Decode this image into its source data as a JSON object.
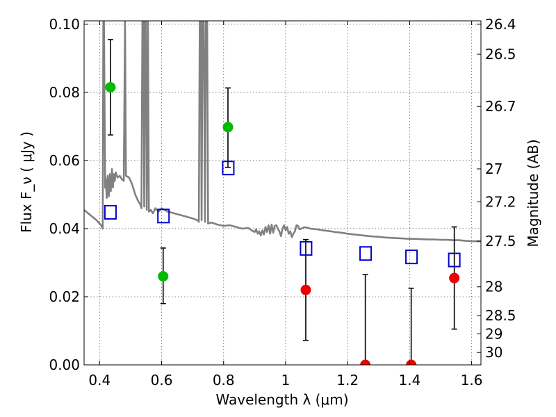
{
  "chart_data": {
    "type": "scatter",
    "xlabel": "Wavelength  λ (μm)",
    "ylabel": "Flux  F_ν  ( μJy )",
    "ylabel_right": "Magnitude (AB)",
    "xlim": [
      0.35,
      1.63
    ],
    "ylim": [
      0,
      0.101
    ],
    "grid": true,
    "x_ticks": [
      0.4,
      0.6,
      0.8,
      1.0,
      1.2,
      1.4,
      1.6
    ],
    "x_tick_labels": [
      "0.4",
      "0.6",
      "0.8",
      "1",
      "1.2",
      "1.4",
      "1.6"
    ],
    "y_ticks": [
      0.0,
      0.02,
      0.04,
      0.06,
      0.08,
      0.1
    ],
    "y_tick_labels": [
      "0.00",
      "0.02",
      "0.04",
      "0.06",
      "0.08",
      "0.10"
    ],
    "mag_ticks": [
      26.4,
      26.5,
      26.7,
      27,
      27.2,
      27.5,
      28,
      28.5,
      29,
      30
    ],
    "mag_tick_labels": [
      "26.4",
      "26.5",
      "26.7",
      "27",
      "27.2",
      "27.5",
      "28",
      "28.5",
      "29",
      "30"
    ],
    "series": [
      {
        "marker": "circle",
        "color": "#00bb00",
        "points": [
          {
            "x": 0.435,
            "y": 0.0815,
            "err_low": 0.0675,
            "err_high": 0.0955
          },
          {
            "x": 0.605,
            "y": 0.026,
            "err_low": 0.018,
            "err_high": 0.0343
          },
          {
            "x": 0.814,
            "y": 0.0698,
            "err_low": 0.058,
            "err_high": 0.0813
          }
        ]
      },
      {
        "marker": "circle",
        "color": "#ee0000",
        "points": [
          {
            "x": 1.065,
            "y": 0.022,
            "err_low": 0.0072,
            "err_high": 0.0368
          },
          {
            "x": 1.257,
            "y": 0.0,
            "err_low": 0.0,
            "err_high": 0.0265
          },
          {
            "x": 1.405,
            "y": 0.0,
            "err_low": 0.0,
            "err_high": 0.0225
          },
          {
            "x": 1.544,
            "y": 0.0255,
            "err_low": 0.0105,
            "err_high": 0.0405
          }
        ]
      },
      {
        "marker": "open-square",
        "color": "#0000cc",
        "points": [
          {
            "x": 0.435,
            "y": 0.0448
          },
          {
            "x": 0.606,
            "y": 0.0437
          },
          {
            "x": 0.815,
            "y": 0.0578
          },
          {
            "x": 1.066,
            "y": 0.0342
          },
          {
            "x": 1.258,
            "y": 0.0327
          },
          {
            "x": 1.406,
            "y": 0.0317
          },
          {
            "x": 1.544,
            "y": 0.0308
          }
        ]
      },
      {
        "type": "line",
        "color": "#808080",
        "points": [
          [
            0.35,
            0.0455
          ],
          [
            0.37,
            0.044
          ],
          [
            0.39,
            0.0425
          ],
          [
            0.405,
            0.041
          ],
          [
            0.41,
            0.04
          ],
          [
            0.412,
            0.101
          ],
          [
            0.414,
            0.101
          ],
          [
            0.418,
            0.052
          ],
          [
            0.42,
            0.0545
          ],
          [
            0.423,
            0.049
          ],
          [
            0.426,
            0.0555
          ],
          [
            0.43,
            0.0495
          ],
          [
            0.433,
            0.056
          ],
          [
            0.436,
            0.051
          ],
          [
            0.44,
            0.0575
          ],
          [
            0.443,
            0.052
          ],
          [
            0.446,
            0.056
          ],
          [
            0.449,
            0.054
          ],
          [
            0.452,
            0.0565
          ],
          [
            0.458,
            0.055
          ],
          [
            0.465,
            0.0555
          ],
          [
            0.472,
            0.0545
          ],
          [
            0.478,
            0.054
          ],
          [
            0.482,
            0.101
          ],
          [
            0.485,
            0.0555
          ],
          [
            0.495,
            0.055
          ],
          [
            0.505,
            0.053
          ],
          [
            0.515,
            0.05
          ],
          [
            0.525,
            0.048
          ],
          [
            0.532,
            0.047
          ],
          [
            0.535,
            0.046
          ],
          [
            0.538,
            0.101
          ],
          [
            0.541,
            0.101
          ],
          [
            0.544,
            0.0465
          ],
          [
            0.546,
            0.101
          ],
          [
            0.549,
            0.101
          ],
          [
            0.552,
            0.0455
          ],
          [
            0.556,
            0.101
          ],
          [
            0.559,
            0.045
          ],
          [
            0.565,
            0.0455
          ],
          [
            0.572,
            0.0445
          ],
          [
            0.58,
            0.046
          ],
          [
            0.59,
            0.045
          ],
          [
            0.6,
            0.046
          ],
          [
            0.62,
            0.045
          ],
          [
            0.64,
            0.0445
          ],
          [
            0.66,
            0.044
          ],
          [
            0.68,
            0.0435
          ],
          [
            0.7,
            0.043
          ],
          [
            0.715,
            0.0425
          ],
          [
            0.72,
            0.042
          ],
          [
            0.723,
            0.101
          ],
          [
            0.726,
            0.101
          ],
          [
            0.729,
            0.0425
          ],
          [
            0.732,
            0.101
          ],
          [
            0.736,
            0.101
          ],
          [
            0.74,
            0.042
          ],
          [
            0.743,
            0.101
          ],
          [
            0.747,
            0.101
          ],
          [
            0.75,
            0.0415
          ],
          [
            0.76,
            0.0418
          ],
          [
            0.78,
            0.0412
          ],
          [
            0.8,
            0.0408
          ],
          [
            0.82,
            0.041
          ],
          [
            0.84,
            0.0405
          ],
          [
            0.86,
            0.04
          ],
          [
            0.88,
            0.0402
          ],
          [
            0.89,
            0.0395
          ],
          [
            0.9,
            0.039
          ],
          [
            0.905,
            0.0398
          ],
          [
            0.91,
            0.0385
          ],
          [
            0.915,
            0.0392
          ],
          [
            0.92,
            0.038
          ],
          [
            0.925,
            0.0395
          ],
          [
            0.93,
            0.0383
          ],
          [
            0.935,
            0.0405
          ],
          [
            0.94,
            0.039
          ],
          [
            0.945,
            0.041
          ],
          [
            0.95,
            0.0385
          ],
          [
            0.955,
            0.0412
          ],
          [
            0.96,
            0.0388
          ],
          [
            0.965,
            0.0408
          ],
          [
            0.97,
            0.041
          ],
          [
            0.975,
            0.04
          ],
          [
            0.98,
            0.0392
          ],
          [
            0.985,
            0.0378
          ],
          [
            0.99,
            0.04
          ],
          [
            0.995,
            0.041
          ],
          [
            1.0,
            0.0395
          ],
          [
            1.005,
            0.0405
          ],
          [
            1.01,
            0.0385
          ],
          [
            1.015,
            0.0392
          ],
          [
            1.02,
            0.0375
          ],
          [
            1.025,
            0.0385
          ],
          [
            1.03,
            0.0392
          ],
          [
            1.035,
            0.041
          ],
          [
            1.04,
            0.0408
          ],
          [
            1.045,
            0.0398
          ],
          [
            1.05,
            0.04
          ],
          [
            1.06,
            0.0404
          ],
          [
            1.07,
            0.0403
          ],
          [
            1.08,
            0.04
          ],
          [
            1.1,
            0.0398
          ],
          [
            1.12,
            0.0395
          ],
          [
            1.14,
            0.0393
          ],
          [
            1.16,
            0.039
          ],
          [
            1.18,
            0.0388
          ],
          [
            1.2,
            0.0385
          ],
          [
            1.22,
            0.0383
          ],
          [
            1.24,
            0.0381
          ],
          [
            1.26,
            0.0379
          ],
          [
            1.28,
            0.0377
          ],
          [
            1.3,
            0.0376
          ],
          [
            1.32,
            0.0374
          ],
          [
            1.34,
            0.0373
          ],
          [
            1.36,
            0.0372
          ],
          [
            1.38,
            0.0371
          ],
          [
            1.4,
            0.037
          ],
          [
            1.42,
            0.037
          ],
          [
            1.44,
            0.0369
          ],
          [
            1.46,
            0.0368
          ],
          [
            1.48,
            0.0368
          ],
          [
            1.5,
            0.0367
          ],
          [
            1.52,
            0.0367
          ],
          [
            1.54,
            0.0366
          ],
          [
            1.56,
            0.0366
          ],
          [
            1.58,
            0.0364
          ],
          [
            1.6,
            0.0363
          ],
          [
            1.63,
            0.0363
          ]
        ]
      }
    ]
  }
}
